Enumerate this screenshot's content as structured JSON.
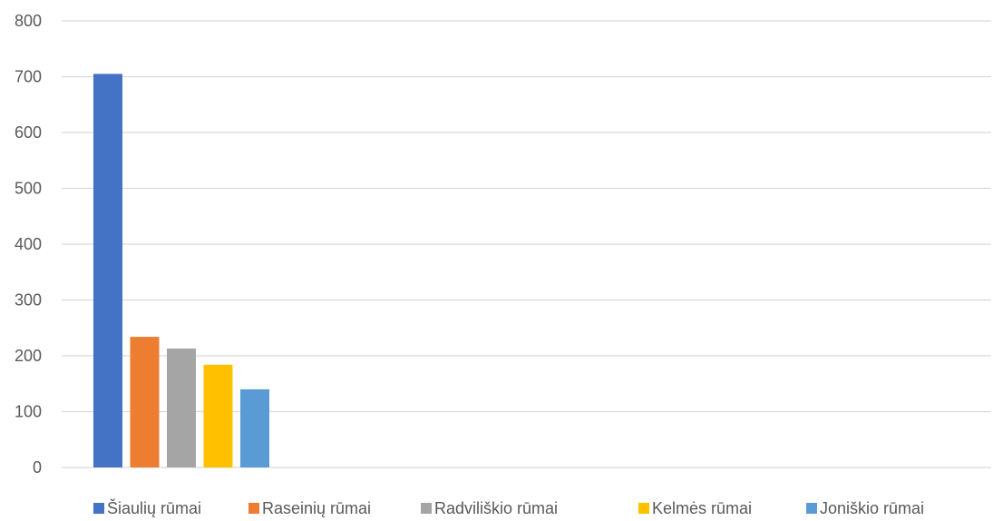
{
  "chart_data": {
    "type": "bar",
    "title": "",
    "xlabel": "",
    "ylabel": "",
    "ylim": [
      0,
      800
    ],
    "yticks": [
      0,
      100,
      200,
      300,
      400,
      500,
      600,
      700,
      800
    ],
    "grid": true,
    "legend_position": "bottom",
    "series": [
      {
        "name": "Šiaulių rūmai",
        "values": [
          705
        ],
        "color": "#4472C4"
      },
      {
        "name": "Raseinių rūmai",
        "values": [
          234
        ],
        "color": "#ED7D31"
      },
      {
        "name": "Radviliškio rūmai",
        "values": [
          213
        ],
        "color": "#A5A5A5"
      },
      {
        "name": "Kelmės rūmai",
        "values": [
          184
        ],
        "color": "#FFC000"
      },
      {
        "name": "Joniškio rūmai",
        "values": [
          140
        ],
        "color": "#5B9BD5"
      }
    ]
  }
}
